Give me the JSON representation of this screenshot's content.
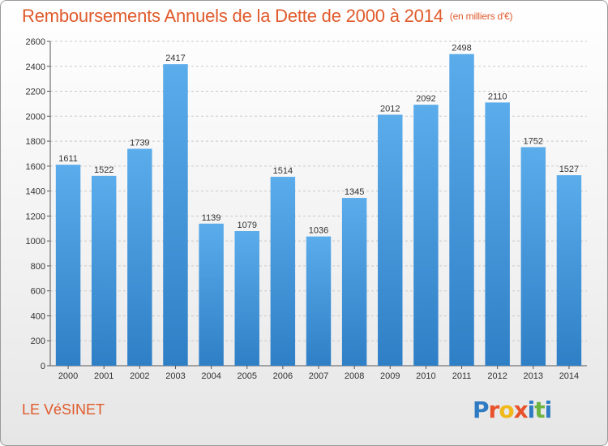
{
  "chart_data": {
    "type": "bar",
    "title": "Remboursements Annuels de la Dette de 2000 à 2014",
    "unit": "(en milliers d'€)",
    "categories": [
      "2000",
      "2001",
      "2002",
      "2003",
      "2004",
      "2005",
      "2006",
      "2007",
      "2008",
      "2009",
      "2010",
      "2011",
      "2012",
      "2013",
      "2014"
    ],
    "values": [
      1611,
      1522,
      1739,
      2417,
      1139,
      1079,
      1514,
      1036,
      1345,
      2012,
      2092,
      2498,
      2110,
      1752,
      1527
    ],
    "ylim": [
      0,
      2600
    ],
    "yticks": [
      0,
      200,
      400,
      600,
      800,
      1000,
      1200,
      1400,
      1600,
      1800,
      2000,
      2200,
      2400,
      2600
    ],
    "grid": true,
    "bar_color": "#4fa0e4"
  },
  "footer": {
    "city": "LE VéSINET",
    "logo": {
      "text": "Proxiti",
      "letters": [
        {
          "ch": "P",
          "color": "#2e7bc4"
        },
        {
          "ch": "r",
          "color": "#e8522b"
        },
        {
          "ch": "o",
          "color": "#f1b81a"
        },
        {
          "ch": "x",
          "color": "#e8522b"
        },
        {
          "ch": "i",
          "color": "#2e7bc4"
        },
        {
          "ch": "t",
          "color": "#6cb43f"
        },
        {
          "ch": "i",
          "color": "#2e7bc4"
        }
      ]
    }
  }
}
